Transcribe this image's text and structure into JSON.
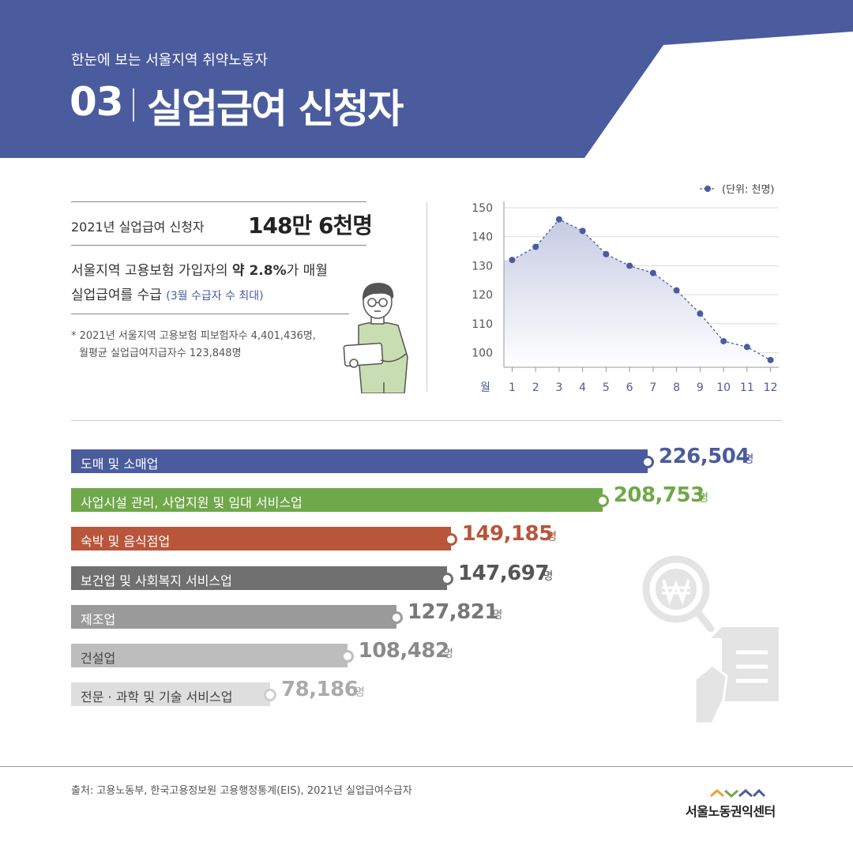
{
  "colors": {
    "header_blue": "#4a5c9e",
    "bar_colors": [
      "#4a5c9e",
      "#6fa84a",
      "#b9553a",
      "#707070",
      "#9a9a9a",
      "#bdbdbd",
      "#dedede"
    ],
    "value_colors": [
      "#4a5c9e",
      "#6fa84a",
      "#b9553a",
      "#555555",
      "#777777",
      "#8a8a8a",
      "#aaaaaa"
    ]
  },
  "header": {
    "subtitle": "한눈에 보는 서울지역 취약노동자",
    "number": "03",
    "title": "실업급여 신청자"
  },
  "summary": {
    "label": "2021년 실업급여 신청자",
    "value": "148만 6천명",
    "desc_line1_pre": "서울지역 고용보험 가입자의 ",
    "desc_line1_bold": "약 2.8%",
    "desc_line1_post": "가 매월",
    "desc_line2": "실업급여를 수급 ",
    "desc_note": "(3월 수급자 수 최대)",
    "footnote_line1": "* 2021년 서울지역 고용보험 피보험자수 4,401,436명,",
    "footnote_line2": "월평균 실업급여지급자수 123,848명"
  },
  "chart_data": {
    "type": "line",
    "legend": "(단위: 천명)",
    "legend_position": "top-right",
    "x_axis_label": "월",
    "x": [
      1,
      2,
      3,
      4,
      5,
      6,
      7,
      8,
      9,
      10,
      11,
      12
    ],
    "series": [
      {
        "values": [
          132,
          136.5,
          146,
          142,
          134,
          130,
          127.5,
          121.5,
          113.5,
          104,
          102,
          97.5
        ]
      }
    ],
    "yticks": [
      150,
      140,
      130,
      120,
      110,
      100
    ],
    "ylim": [
      95,
      150
    ],
    "grid": true
  },
  "industry_chart": {
    "type": "bar",
    "unit": "명",
    "items": [
      {
        "label": "도매 및 소매업",
        "value": 226504,
        "display": "226,504"
      },
      {
        "label": "사업시설 관리, 사업지원 및 임대 서비스업",
        "value": 208753,
        "display": "208,753"
      },
      {
        "label": "숙박 및 음식점업",
        "value": 149185,
        "display": "149,185"
      },
      {
        "label": "보건업 및 사회복지 서비스업",
        "value": 147697,
        "display": "147,697"
      },
      {
        "label": "제조업",
        "value": 127821,
        "display": "127,821"
      },
      {
        "label": "건설업",
        "value": 108482,
        "display": "108,482"
      },
      {
        "label": "전문 · 과학 및 기술 서비스업",
        "value": 78186,
        "display": "78,186"
      }
    ]
  },
  "icons": {
    "person": "person-with-tablet-icon",
    "won": "won-search-icon",
    "document": "document-hand-icon",
    "logo": "seoul-labor-center-logo-icon"
  },
  "footer": {
    "source": "출처: 고용노동부, 한국고용정보원 고용행정통계(EIS), 2021년 실업급여수급자",
    "logo_text": "서울노동권익센터"
  }
}
